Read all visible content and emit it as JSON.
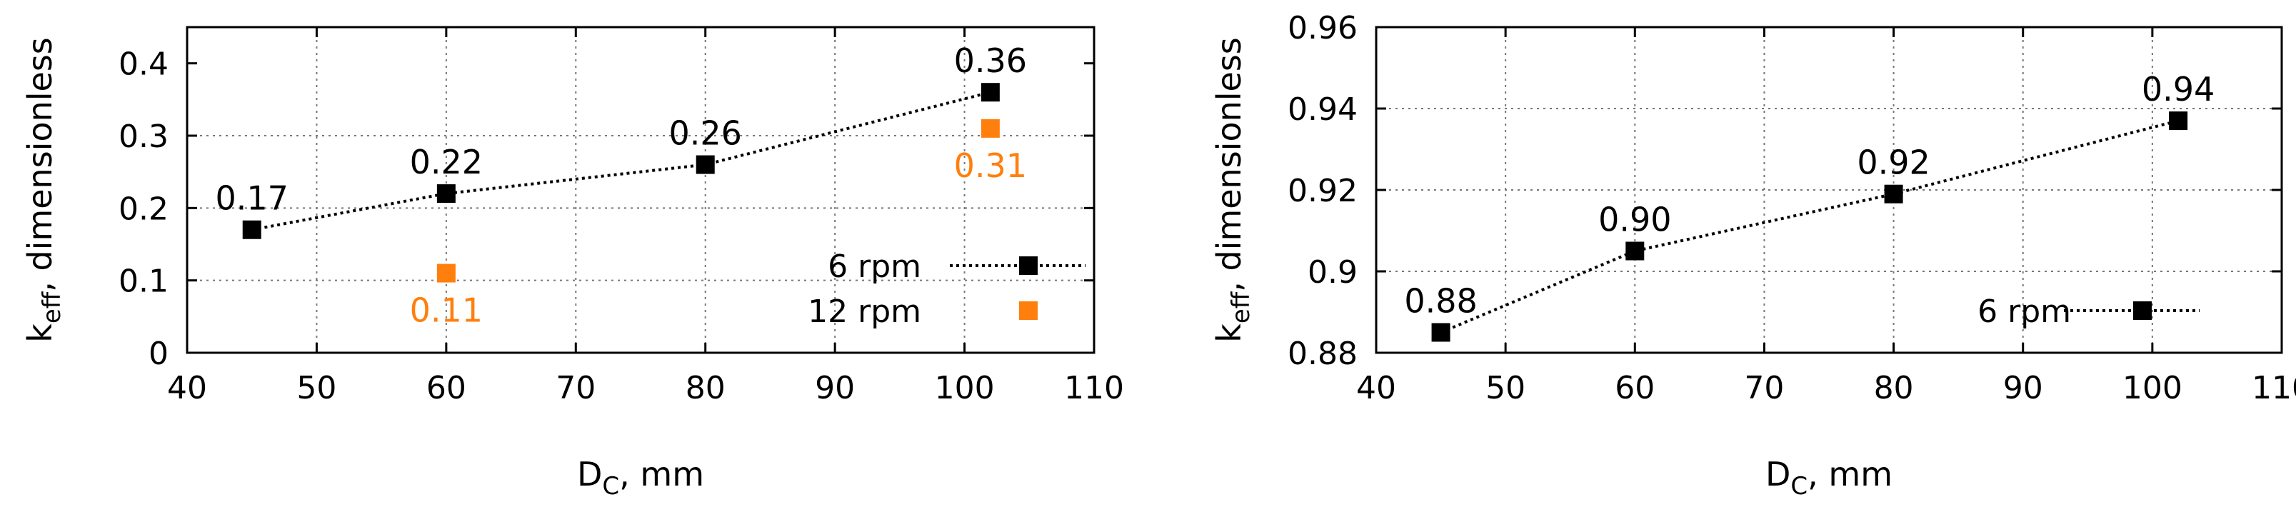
{
  "colors": {
    "series_6rpm": "#000000",
    "series_12rpm": "#ff7f0e",
    "grid": "#777777"
  },
  "chart_data": [
    {
      "type": "scatter",
      "xlabel_main": "D",
      "xlabel_sub": "C",
      "xlabel_tail": ", mm",
      "ylabel_main": "k",
      "ylabel_sub": "eff",
      "ylabel_tail": ", dimensionless",
      "xlim": [
        40,
        110
      ],
      "ylim": [
        0,
        0.45
      ],
      "xticks": [
        40,
        50,
        60,
        70,
        80,
        90,
        100,
        110
      ],
      "yticks": [
        0,
        0.1,
        0.2,
        0.3,
        0.4
      ],
      "ytick_labels": [
        "0",
        "0.1",
        "0.2",
        "0.3",
        "0.4"
      ],
      "grid": true,
      "legend_position": "bottom-right",
      "series": [
        {
          "name": "6 rpm",
          "line": true,
          "x": [
            45,
            60,
            80,
            102
          ],
          "y": [
            0.17,
            0.22,
            0.26,
            0.36
          ],
          "labels": [
            "0.17",
            "0.22",
            "0.26",
            "0.36"
          ],
          "label_pos": [
            "above",
            "above",
            "above",
            "above"
          ]
        },
        {
          "name": "12 rpm",
          "line": false,
          "x": [
            60,
            102
          ],
          "y": [
            0.11,
            0.31
          ],
          "labels": [
            "0.11",
            "0.31"
          ],
          "label_pos": [
            "below",
            "below"
          ]
        }
      ]
    },
    {
      "type": "line",
      "xlabel_main": "D",
      "xlabel_sub": "C",
      "xlabel_tail": ", mm",
      "ylabel_main": "k",
      "ylabel_sub": "eff",
      "ylabel_tail": ", dimensionless",
      "xlim": [
        40,
        110
      ],
      "ylim": [
        0.88,
        0.96
      ],
      "xticks": [
        40,
        50,
        60,
        70,
        80,
        90,
        100,
        110
      ],
      "yticks": [
        0.88,
        0.9,
        0.92,
        0.94,
        0.96
      ],
      "ytick_labels": [
        "0.88",
        "0.9",
        "0.92",
        "0.94",
        "0.96"
      ],
      "grid": true,
      "legend_position": "bottom-right",
      "series": [
        {
          "name": "6 rpm",
          "line": true,
          "x": [
            45,
            60,
            80,
            102
          ],
          "y": [
            0.885,
            0.905,
            0.919,
            0.937
          ],
          "labels": [
            "0.88",
            "0.90",
            "0.92",
            "0.94"
          ],
          "label_pos": [
            "above",
            "above",
            "above",
            "above"
          ]
        }
      ]
    }
  ]
}
